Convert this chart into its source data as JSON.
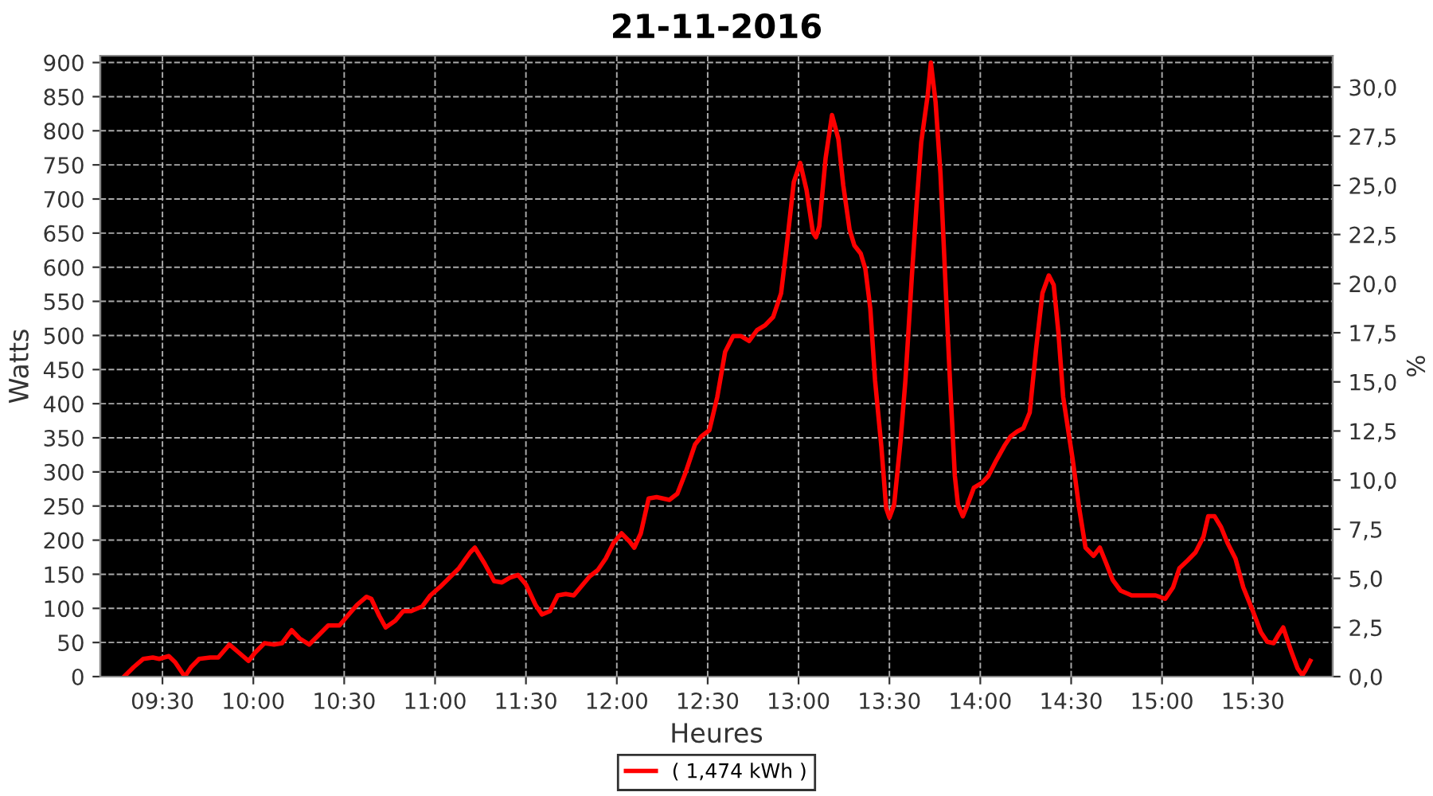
{
  "chart_data": {
    "type": "line",
    "title": "21-11-2016",
    "xlabel": "Heures",
    "ylabel": "Watts",
    "y2label": "%",
    "xlim": [
      9.158,
      15.939
    ],
    "ylim": [
      0,
      910
    ],
    "y2lim": [
      0,
      31.6
    ],
    "xticks": [
      {
        "value": 9.5,
        "label": "09:30"
      },
      {
        "value": 10,
        "label": "10:00"
      },
      {
        "value": 10.5,
        "label": "10:30"
      },
      {
        "value": 11,
        "label": "11:00"
      },
      {
        "value": 11.5,
        "label": "11:30"
      },
      {
        "value": 12,
        "label": "12:00"
      },
      {
        "value": 12.5,
        "label": "12:30"
      },
      {
        "value": 13,
        "label": "13:00"
      },
      {
        "value": 13.5,
        "label": "13:30"
      },
      {
        "value": 14,
        "label": "14:00"
      },
      {
        "value": 14.5,
        "label": "14:30"
      },
      {
        "value": 15,
        "label": "15:00"
      },
      {
        "value": 15.5,
        "label": "15:30"
      }
    ],
    "yticks": [
      0,
      50,
      100,
      150,
      200,
      250,
      300,
      350,
      400,
      450,
      500,
      550,
      600,
      650,
      700,
      750,
      800,
      850,
      900
    ],
    "y2ticks": [
      {
        "value": 0,
        "label": "0,0"
      },
      {
        "value": 2.5,
        "label": "2,5"
      },
      {
        "value": 5,
        "label": "5,0"
      },
      {
        "value": 7.5,
        "label": "7,5"
      },
      {
        "value": 10,
        "label": "10,0"
      },
      {
        "value": 12.5,
        "label": "12,5"
      },
      {
        "value": 15,
        "label": "15,0"
      },
      {
        "value": 17.5,
        "label": "17,5"
      },
      {
        "value": 20,
        "label": "20,0"
      },
      {
        "value": 22.5,
        "label": "22,5"
      },
      {
        "value": 25,
        "label": "25,0"
      },
      {
        "value": 27.5,
        "label": "27,5"
      },
      {
        "value": 30,
        "label": "30,0"
      }
    ],
    "grid": true,
    "legend": "bottom",
    "marker": "none",
    "line_style": "solid",
    "series": [
      {
        "name": "( 1,474 kWh )",
        "color": "#ff0000",
        "x": [
          9.289,
          9.342,
          9.395,
          9.447,
          9.482,
          9.535,
          9.57,
          9.623,
          9.658,
          9.702,
          9.763,
          9.807,
          9.868,
          9.921,
          9.974,
          10.009,
          10.061,
          10.114,
          10.158,
          10.211,
          10.254,
          10.307,
          10.36,
          10.412,
          10.474,
          10.518,
          10.57,
          10.623,
          10.649,
          10.693,
          10.728,
          10.781,
          10.825,
          10.868,
          10.93,
          10.974,
          11.026,
          11.079,
          11.132,
          11.193,
          11.219,
          11.272,
          11.325,
          11.368,
          11.412,
          11.456,
          11.5,
          11.553,
          11.588,
          11.632,
          11.675,
          11.719,
          11.763,
          11.807,
          11.851,
          11.895,
          11.939,
          11.982,
          12.026,
          12.07,
          12.096,
          12.132,
          12.175,
          12.219,
          12.289,
          12.333,
          12.377,
          12.43,
          12.465,
          12.509,
          12.553,
          12.596,
          12.64,
          12.684,
          12.728,
          12.772,
          12.816,
          12.86,
          12.904,
          12.93,
          12.974,
          13.009,
          13.044,
          13.079,
          13.096,
          13.114,
          13.149,
          13.184,
          13.219,
          13.246,
          13.281,
          13.307,
          13.342,
          13.368,
          13.395,
          13.421,
          13.456,
          13.482,
          13.5,
          13.526,
          13.561,
          13.588,
          13.623,
          13.649,
          13.675,
          13.711,
          13.728,
          13.754,
          13.781,
          13.807,
          13.833,
          13.86,
          13.877,
          13.904,
          13.93,
          13.965,
          14.009,
          14.044,
          14.088,
          14.132,
          14.167,
          14.202,
          14.237,
          14.272,
          14.307,
          14.342,
          14.377,
          14.404,
          14.43,
          14.456,
          14.482,
          14.509,
          14.544,
          14.579,
          14.623,
          14.658,
          14.693,
          14.728,
          14.772,
          14.833,
          14.904,
          14.965,
          15.018,
          15.061,
          15.096,
          15.14,
          15.184,
          15.228,
          15.254,
          15.289,
          15.325,
          15.36,
          15.404,
          15.447,
          15.5,
          15.544,
          15.579,
          15.614,
          15.64,
          15.667,
          15.711,
          15.746,
          15.772,
          15.789,
          15.816
        ],
        "values": [
          0,
          14,
          26,
          28,
          26,
          30,
          21,
          0,
          14,
          26,
          28,
          28,
          47,
          35,
          23,
          35,
          49,
          47,
          49,
          68,
          56,
          47,
          61,
          75,
          75,
          89,
          105,
          117,
          114,
          89,
          72,
          82,
          96,
          96,
          103,
          119,
          131,
          145,
          159,
          182,
          189,
          166,
          140,
          138,
          145,
          149,
          135,
          105,
          91,
          96,
          119,
          121,
          119,
          133,
          147,
          156,
          173,
          196,
          210,
          198,
          189,
          210,
          261,
          263,
          259,
          268,
          298,
          340,
          352,
          361,
          410,
          476,
          499,
          499,
          492,
          508,
          515,
          527,
          562,
          620,
          725,
          753,
          713,
          651,
          644,
          660,
          760,
          823,
          788,
          720,
          655,
          632,
          620,
          597,
          539,
          434,
          336,
          247,
          233,
          252,
          345,
          434,
          585,
          690,
          783,
          853,
          900,
          842,
          737,
          585,
          434,
          294,
          252,
          235,
          252,
          277,
          284,
          294,
          317,
          338,
          352,
          359,
          364,
          387,
          480,
          562,
          588,
          574,
          504,
          410,
          364,
          317,
          247,
          189,
          177,
          189,
          166,
          142,
          126,
          119,
          119,
          119,
          114,
          131,
          159,
          170,
          182,
          205,
          235,
          235,
          219,
          196,
          173,
          131,
          96,
          65,
          51,
          49,
          61,
          72,
          37,
          12,
          2,
          9,
          23
        ]
      }
    ]
  }
}
